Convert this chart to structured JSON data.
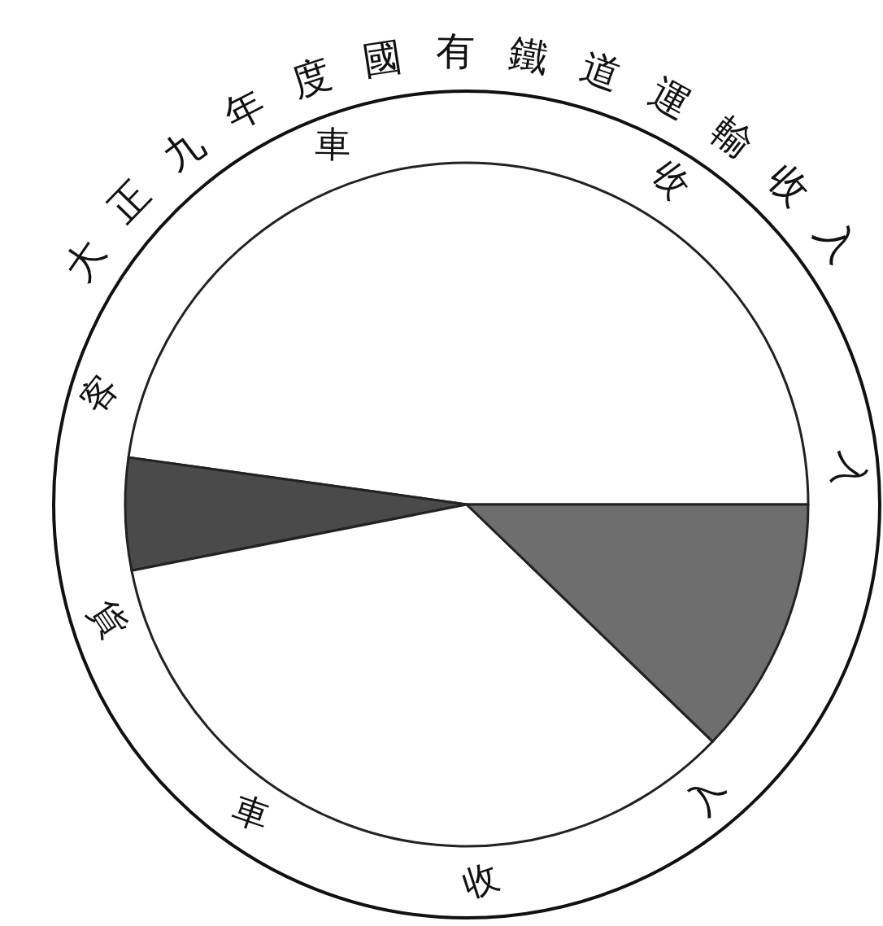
{
  "chart_data": {
    "type": "pie",
    "title": "大正九年度國有鐵道運輸收入",
    "categories": [
      "客車收入",
      null,
      "貨車收入",
      null
    ],
    "values": [
      47.8,
      5.3,
      34.7,
      12.2
    ],
    "colors": [
      "#ffffff",
      "#4a4a4a",
      "#ffffff",
      "#6e6e6e"
    ]
  }
}
